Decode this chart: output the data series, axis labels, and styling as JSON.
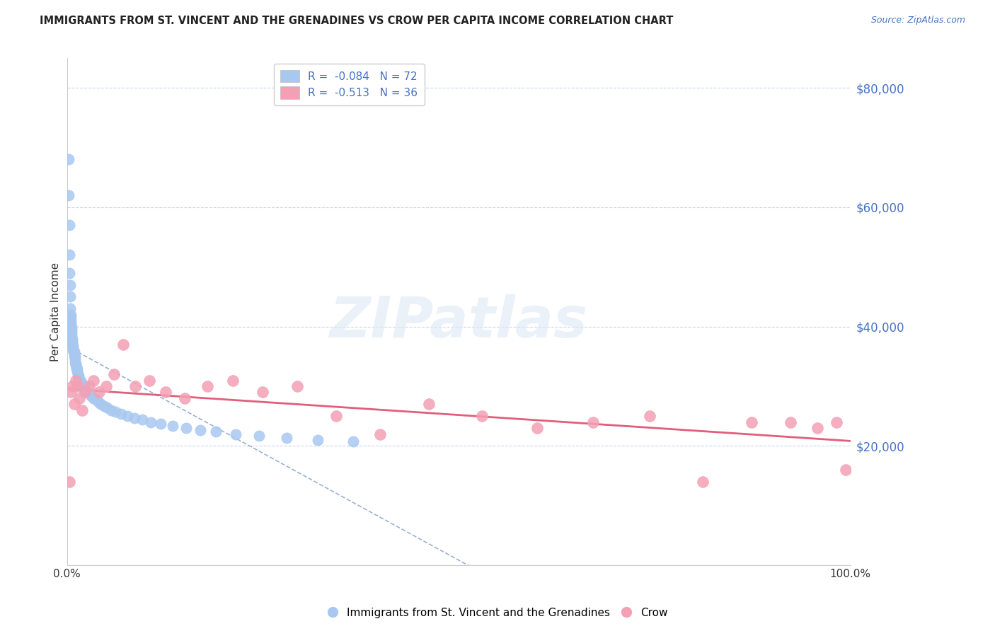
{
  "title": "IMMIGRANTS FROM ST. VINCENT AND THE GRENADINES VS CROW PER CAPITA INCOME CORRELATION CHART",
  "source": "Source: ZipAtlas.com",
  "ylabel": "Per Capita Income",
  "legend_r1": "R =  -0.084   N = 72",
  "legend_r2": "R =  -0.513   N = 36",
  "color_blue": "#a8c8f0",
  "color_pink": "#f4a0b4",
  "trendline_blue_color": "#7090c0",
  "trendline_pink_color": "#e05575",
  "watermark": "ZIPatlas",
  "background_color": "#ffffff",
  "grid_color": "#c8d8e8",
  "ytick_color": "#4472c4",
  "blue_scatter_x": [
    0.002,
    0.002,
    0.003,
    0.003,
    0.003,
    0.004,
    0.004,
    0.004,
    0.005,
    0.005,
    0.005,
    0.005,
    0.006,
    0.006,
    0.006,
    0.006,
    0.007,
    0.007,
    0.007,
    0.008,
    0.008,
    0.008,
    0.009,
    0.009,
    0.009,
    0.01,
    0.01,
    0.01,
    0.011,
    0.011,
    0.012,
    0.012,
    0.013,
    0.013,
    0.014,
    0.015,
    0.015,
    0.016,
    0.017,
    0.018,
    0.019,
    0.02,
    0.021,
    0.022,
    0.023,
    0.025,
    0.027,
    0.029,
    0.031,
    0.034,
    0.037,
    0.04,
    0.043,
    0.047,
    0.051,
    0.056,
    0.062,
    0.069,
    0.077,
    0.086,
    0.096,
    0.107,
    0.12,
    0.135,
    0.152,
    0.17,
    0.19,
    0.215,
    0.245,
    0.28,
    0.32,
    0.365
  ],
  "blue_scatter_y": [
    68000,
    62000,
    57000,
    52000,
    49000,
    47000,
    45000,
    43000,
    42000,
    41500,
    41000,
    40500,
    40000,
    39500,
    39000,
    38500,
    38000,
    37500,
    37000,
    36800,
    36500,
    36000,
    35800,
    35500,
    35000,
    35000,
    34500,
    34000,
    33800,
    33500,
    33200,
    33000,
    32800,
    32500,
    32000,
    31800,
    31500,
    31200,
    31000,
    30800,
    30500,
    30200,
    30000,
    29800,
    29500,
    29200,
    29000,
    28700,
    28400,
    28000,
    27700,
    27400,
    27000,
    26700,
    26400,
    26000,
    25700,
    25400,
    25000,
    24700,
    24400,
    24000,
    23700,
    23400,
    23000,
    22700,
    22400,
    22000,
    21700,
    21400,
    21000,
    20700
  ],
  "pink_scatter_x": [
    0.003,
    0.005,
    0.007,
    0.009,
    0.011,
    0.013,
    0.016,
    0.019,
    0.023,
    0.028,
    0.034,
    0.041,
    0.05,
    0.06,
    0.072,
    0.087,
    0.105,
    0.126,
    0.15,
    0.179,
    0.212,
    0.25,
    0.294,
    0.344,
    0.4,
    0.462,
    0.53,
    0.6,
    0.672,
    0.744,
    0.812,
    0.874,
    0.924,
    0.958,
    0.982,
    0.994
  ],
  "pink_scatter_y": [
    14000,
    29000,
    30000,
    27000,
    31000,
    30000,
    28000,
    26000,
    29000,
    30000,
    31000,
    29000,
    30000,
    32000,
    37000,
    30000,
    31000,
    29000,
    28000,
    30000,
    31000,
    29000,
    30000,
    25000,
    22000,
    27000,
    25000,
    23000,
    24000,
    25000,
    14000,
    24000,
    24000,
    23000,
    24000,
    16000
  ]
}
